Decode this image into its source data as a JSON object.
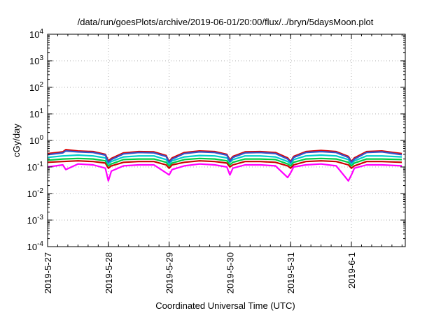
{
  "chart_data": {
    "type": "line",
    "title": "/data/run/goesPlots/archive/2019-06-01/20:00/flux/../bryn/5daysMoon.plot",
    "xlabel": "Coordinated Universal Time (UTC)",
    "ylabel": "cGy/day",
    "yscale": "log",
    "ylim": [
      0.0001,
      10000
    ],
    "xlim": [
      "2019-05-27 00:00",
      "2019-06-01 20:00"
    ],
    "grid": true,
    "legend": "none",
    "y_ticks": [
      {
        "base": "10",
        "exp": "-4"
      },
      {
        "base": "10",
        "exp": "-3"
      },
      {
        "base": "10",
        "exp": "-2"
      },
      {
        "base": "10",
        "exp": "-1"
      },
      {
        "base": "10",
        "exp": "0"
      },
      {
        "base": "10",
        "exp": "1"
      },
      {
        "base": "10",
        "exp": "2"
      },
      {
        "base": "10",
        "exp": "3"
      },
      {
        "base": "10",
        "exp": "4"
      }
    ],
    "x_ticks": [
      "2019-5-27",
      "2019-5-28",
      "2019-5-29",
      "2019-5-30",
      "2019-5-31",
      "2019-6-1"
    ],
    "x_tick_days": [
      0,
      1,
      2,
      3,
      4,
      5
    ],
    "series": [
      {
        "color": "#ff00ff",
        "x": [
          0,
          0.25,
          0.3,
          0.5,
          0.75,
          0.95,
          1.0,
          1.05,
          1.25,
          1.5,
          1.75,
          1.95,
          2.0,
          2.05,
          2.25,
          2.5,
          2.75,
          2.95,
          3.0,
          3.05,
          3.25,
          3.5,
          3.75,
          3.95,
          4.0,
          4.05,
          4.25,
          4.5,
          4.75,
          4.95,
          5.0,
          5.05,
          5.25,
          5.5,
          5.83
        ],
        "y": [
          0.1,
          0.12,
          0.08,
          0.13,
          0.12,
          0.09,
          0.03,
          0.07,
          0.11,
          0.12,
          0.12,
          0.06,
          0.05,
          0.08,
          0.11,
          0.13,
          0.12,
          0.1,
          0.05,
          0.09,
          0.12,
          0.12,
          0.11,
          0.04,
          0.06,
          0.1,
          0.12,
          0.13,
          0.11,
          0.03,
          0.05,
          0.09,
          0.12,
          0.12,
          0.11
        ]
      },
      {
        "color": "#cc0000",
        "x": [
          0,
          0.25,
          0.5,
          0.75,
          0.95,
          1.0,
          1.05,
          1.25,
          1.5,
          1.75,
          1.95,
          2.0,
          2.05,
          2.25,
          2.5,
          2.75,
          2.95,
          3.0,
          3.05,
          3.25,
          3.5,
          3.75,
          3.95,
          4.0,
          4.05,
          4.25,
          4.5,
          4.75,
          4.95,
          5.0,
          5.05,
          5.25,
          5.5,
          5.83
        ],
        "y": [
          0.15,
          0.16,
          0.17,
          0.16,
          0.14,
          0.09,
          0.11,
          0.15,
          0.16,
          0.16,
          0.12,
          0.09,
          0.12,
          0.15,
          0.17,
          0.16,
          0.14,
          0.1,
          0.12,
          0.16,
          0.16,
          0.15,
          0.11,
          0.09,
          0.12,
          0.16,
          0.17,
          0.16,
          0.12,
          0.09,
          0.11,
          0.16,
          0.16,
          0.15
        ]
      },
      {
        "color": "#00cc44",
        "x": [
          0,
          0.25,
          0.5,
          0.75,
          0.95,
          1.0,
          1.05,
          1.25,
          1.5,
          1.75,
          1.95,
          2.0,
          2.05,
          2.25,
          2.5,
          2.75,
          2.95,
          3.0,
          3.05,
          3.25,
          3.5,
          3.75,
          3.95,
          4.0,
          4.05,
          4.25,
          4.5,
          4.75,
          4.95,
          5.0,
          5.05,
          5.25,
          5.5,
          5.83
        ],
        "y": [
          0.18,
          0.2,
          0.21,
          0.2,
          0.17,
          0.11,
          0.13,
          0.19,
          0.2,
          0.2,
          0.15,
          0.11,
          0.14,
          0.19,
          0.21,
          0.2,
          0.17,
          0.12,
          0.15,
          0.2,
          0.2,
          0.19,
          0.13,
          0.11,
          0.15,
          0.2,
          0.21,
          0.2,
          0.15,
          0.11,
          0.14,
          0.2,
          0.2,
          0.19
        ]
      },
      {
        "color": "#00cccc",
        "x": [
          0,
          0.25,
          0.5,
          0.75,
          0.95,
          1.0,
          1.05,
          1.25,
          1.5,
          1.75,
          1.95,
          2.0,
          2.05,
          2.25,
          2.5,
          2.75,
          2.95,
          3.0,
          3.05,
          3.25,
          3.5,
          3.75,
          3.95,
          4.0,
          4.05,
          4.25,
          4.5,
          4.75,
          4.95,
          5.0,
          5.05,
          5.25,
          5.5,
          5.83
        ],
        "y": [
          0.23,
          0.26,
          0.28,
          0.26,
          0.22,
          0.13,
          0.16,
          0.24,
          0.26,
          0.26,
          0.19,
          0.13,
          0.17,
          0.24,
          0.27,
          0.26,
          0.22,
          0.15,
          0.19,
          0.26,
          0.26,
          0.24,
          0.16,
          0.13,
          0.19,
          0.26,
          0.28,
          0.26,
          0.19,
          0.13,
          0.17,
          0.26,
          0.26,
          0.24
        ]
      },
      {
        "color": "#dd0000",
        "x": [
          0,
          0.25,
          0.3,
          0.5,
          0.75,
          0.95,
          1.0,
          1.05,
          1.25,
          1.5,
          1.75,
          1.95,
          2.0,
          2.05,
          2.25,
          2.5,
          2.75,
          2.95,
          3.0,
          3.05,
          3.25,
          3.5,
          3.75,
          3.95,
          4.0,
          4.05,
          4.25,
          4.5,
          4.75,
          4.95,
          5.0,
          5.05,
          5.25,
          5.5,
          5.83
        ],
        "y": [
          0.32,
          0.37,
          0.45,
          0.4,
          0.38,
          0.3,
          0.17,
          0.21,
          0.34,
          0.38,
          0.37,
          0.27,
          0.16,
          0.22,
          0.35,
          0.4,
          0.38,
          0.3,
          0.18,
          0.25,
          0.37,
          0.38,
          0.35,
          0.22,
          0.16,
          0.25,
          0.38,
          0.42,
          0.38,
          0.25,
          0.16,
          0.22,
          0.38,
          0.4,
          0.32
        ]
      },
      {
        "color": "#3355cc",
        "x": [
          0,
          0.25,
          0.3,
          0.5,
          0.75,
          0.95,
          1.0,
          1.05,
          1.25,
          1.5,
          1.75,
          1.95,
          2.0,
          2.05,
          2.25,
          2.5,
          2.75,
          2.95,
          3.0,
          3.05,
          3.25,
          3.5,
          3.75,
          3.95,
          4.0,
          4.05,
          4.25,
          4.5,
          4.75,
          4.95,
          5.0,
          5.05,
          5.25,
          5.5,
          5.83
        ],
        "y": [
          0.29,
          0.34,
          0.4,
          0.37,
          0.35,
          0.28,
          0.15,
          0.19,
          0.31,
          0.35,
          0.34,
          0.25,
          0.15,
          0.2,
          0.32,
          0.37,
          0.35,
          0.28,
          0.16,
          0.23,
          0.34,
          0.35,
          0.32,
          0.2,
          0.15,
          0.23,
          0.35,
          0.38,
          0.35,
          0.23,
          0.15,
          0.2,
          0.35,
          0.37,
          0.29
        ]
      }
    ]
  }
}
